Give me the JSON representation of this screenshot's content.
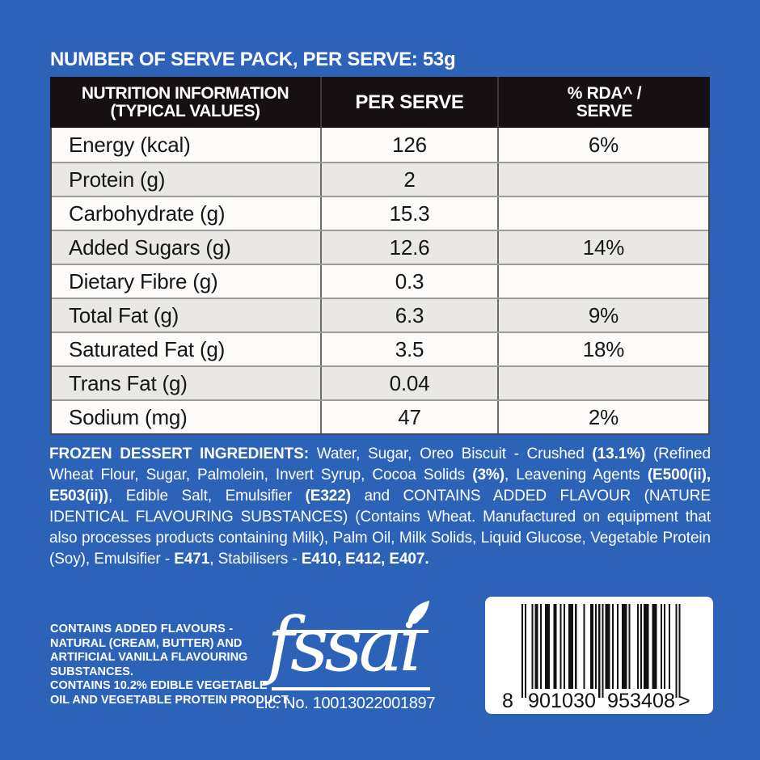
{
  "colors": {
    "background": "#2c62b8",
    "table_header_bg": "#171013",
    "row_white": "#fcfbfa",
    "row_gray": "#e9e8e5",
    "text_dark": "#161616",
    "text_light": "#ffffff",
    "barcode_bar": "#111111"
  },
  "header": {
    "title": "NUMBER OF SERVE PACK, PER SERVE: 53g"
  },
  "nutrition_table": {
    "col1_title_line1": "NUTRITION INFORMATION",
    "col1_title_line2": "(TYPICAL VALUES)",
    "col2_title": "PER SERVE",
    "col3_title_line1": "% RDA^ /",
    "col3_title_line2": "SERVE",
    "rows": [
      {
        "label": "Energy (kcal)",
        "per_serve": "126",
        "rda_per_serve": "6%"
      },
      {
        "label": "Protein (g)",
        "per_serve": "2",
        "rda_per_serve": ""
      },
      {
        "label": "Carbohydrate (g)",
        "per_serve": "15.3",
        "rda_per_serve": ""
      },
      {
        "label": "Added Sugars (g)",
        "per_serve": "12.6",
        "rda_per_serve": "14%"
      },
      {
        "label": "Dietary Fibre (g)",
        "per_serve": "0.3",
        "rda_per_serve": ""
      },
      {
        "label": "Total Fat (g)",
        "per_serve": "6.3",
        "rda_per_serve": "9%"
      },
      {
        "label": "Saturated Fat (g)",
        "per_serve": "3.5",
        "rda_per_serve": "18%"
      },
      {
        "label": "Trans Fat (g)",
        "per_serve": "0.04",
        "rda_per_serve": ""
      },
      {
        "label": "Sodium (mg)",
        "per_serve": "47",
        "rda_per_serve": "2%"
      }
    ]
  },
  "ingredients": {
    "segments": [
      {
        "text": "FROZEN DESSERT INGREDIENTS:",
        "bold": true
      },
      {
        "text": " Water, Sugar, Oreo Biscuit - Crushed ",
        "bold": false
      },
      {
        "text": "(13.1%)",
        "bold": true
      },
      {
        "text": " (Refined Wheat Flour, Sugar, Palmolein, Invert Syrup, Cocoa Solids ",
        "bold": false
      },
      {
        "text": "(3%)",
        "bold": true
      },
      {
        "text": ", Leavening Agents ",
        "bold": false
      },
      {
        "text": "(E500(ii), E503(ii))",
        "bold": true
      },
      {
        "text": ", Edible Salt, Emulsifier ",
        "bold": false
      },
      {
        "text": "(E322)",
        "bold": true
      },
      {
        "text": " and CONTAINS ADDED FLAVOUR (NATURE IDENTICAL FLAVOURING SUBSTANCES) (Contains Wheat. Manufactured on equipment that also processes products containing Milk), Palm Oil, Milk Solids, Liquid Glucose, Vegetable Protein (Soy), Emulsifier - ",
        "bold": false
      },
      {
        "text": "E471",
        "bold": true
      },
      {
        "text": ", Stabilisers - ",
        "bold": false
      },
      {
        "text": "E410, E412, E407.",
        "bold": true
      }
    ]
  },
  "flavour_note": {
    "lines": [
      {
        "text": "CONTAINS ADDED FLAVOURS -",
        "bold": true
      },
      {
        "text": "NATURAL (CREAM, BUTTER) AND",
        "bold": false
      },
      {
        "text": "ARTIFICIAL VANILLA FLAVOURING",
        "bold": false
      },
      {
        "text": "SUBSTANCES.",
        "bold": false
      },
      {
        "text": "CONTAINS 10.2% EDIBLE VEGETABLE",
        "bold": false
      },
      {
        "text": "OIL AND VEGETABLE PROTEIN PRODUCT.",
        "bold": false
      }
    ]
  },
  "fssai": {
    "logo_text": "fssai",
    "license": "Lic. No. 10013022001897"
  },
  "barcode": {
    "code": "8901030953408",
    "display_first_digit": "8",
    "display_left_group": "901030",
    "display_right_group": "953408",
    "display_suffix": ">"
  }
}
